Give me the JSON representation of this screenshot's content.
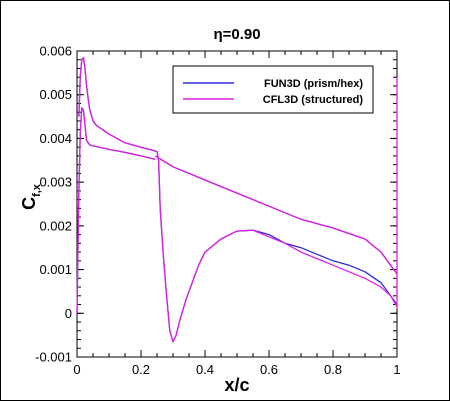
{
  "chart_data": {
    "type": "line",
    "title": "η=0.90",
    "xlabel": "x/c",
    "ylabel_main": "C",
    "ylabel_sub": "f,x",
    "xlim": [
      0,
      1
    ],
    "ylim": [
      -0.001,
      0.006
    ],
    "x_ticks": [
      0,
      0.2,
      0.4,
      0.6,
      0.8,
      1
    ],
    "x_tick_labels": [
      "0",
      "0.2",
      "0.4",
      "0.6",
      "0.8",
      "1"
    ],
    "y_ticks": [
      -0.001,
      0,
      0.001,
      0.002,
      0.003,
      0.004,
      0.005,
      0.006
    ],
    "y_tick_labels": [
      "-0.001",
      "0",
      "0.001",
      "0.002",
      "0.003",
      "0.004",
      "0.005",
      "0.006"
    ],
    "grid": false,
    "legend_position": "top-right",
    "series": [
      {
        "name": "FUN3D (prism/hex)",
        "color": "#2b2bd6",
        "segments": [
          {
            "x": [
              0.0,
              0.005,
              0.01,
              0.015,
              0.02,
              0.025,
              0.03,
              0.04,
              0.05,
              0.07,
              0.1,
              0.15,
              0.2,
              0.245
            ],
            "y": [
              0.0,
              0.0025,
              0.0041,
              0.0047,
              0.00465,
              0.0043,
              0.00395,
              0.00385,
              0.00383,
              0.0038,
              0.00375,
              0.00368,
              0.0036,
              0.00352
            ]
          },
          {
            "x": [
              0.006,
              0.01,
              0.015,
              0.02,
              0.025,
              0.03,
              0.035,
              0.04,
              0.05,
              0.06,
              0.08,
              0.1,
              0.15,
              0.2,
              0.25,
              0.255,
              0.26,
              0.27,
              0.28,
              0.29,
              0.3,
              0.31,
              0.32,
              0.34,
              0.36,
              0.38,
              0.4,
              0.45,
              0.5,
              0.55,
              0.6,
              0.65,
              0.7,
              0.75,
              0.8,
              0.85,
              0.9,
              0.95,
              0.98,
              1.0
            ],
            "y": [
              0.0045,
              0.0054,
              0.0058,
              0.00585,
              0.0056,
              0.0052,
              0.0049,
              0.00465,
              0.0044,
              0.0043,
              0.0042,
              0.0041,
              0.0039,
              0.0038,
              0.0037,
              0.0035,
              0.0024,
              0.0013,
              0.0004,
              -0.0004,
              -0.00065,
              -0.0005,
              -0.0002,
              0.0003,
              0.0007,
              0.0011,
              0.0014,
              0.0017,
              0.00188,
              0.0019,
              0.0018,
              0.0016,
              0.0015,
              0.00135,
              0.0012,
              0.0011,
              0.00095,
              0.0007,
              0.0004,
              0.0002
            ]
          },
          {
            "x": [
              0.245,
              0.3,
              0.4,
              0.5,
              0.6,
              0.7,
              0.8,
              0.9,
              0.95,
              0.99,
              1.0
            ],
            "y": [
              0.0036,
              0.00335,
              0.00305,
              0.00275,
              0.00245,
              0.00215,
              0.00195,
              0.0017,
              0.0014,
              0.001,
              0.0009
            ]
          }
        ]
      },
      {
        "name": "CFL3D (structured)",
        "color": "#e020e0",
        "segments": [
          {
            "x": [
              0.0,
              0.005,
              0.01,
              0.015,
              0.02,
              0.025,
              0.03,
              0.04,
              0.05,
              0.07,
              0.1,
              0.15,
              0.2,
              0.245
            ],
            "y": [
              0.0,
              0.0025,
              0.0041,
              0.0047,
              0.00465,
              0.0043,
              0.00395,
              0.00385,
              0.00383,
              0.0038,
              0.00375,
              0.00368,
              0.0036,
              0.00352
            ]
          },
          {
            "x": [
              0.006,
              0.01,
              0.015,
              0.02,
              0.025,
              0.03,
              0.035,
              0.04,
              0.05,
              0.06,
              0.08,
              0.1,
              0.15,
              0.2,
              0.25,
              0.255,
              0.26,
              0.27,
              0.28,
              0.29,
              0.3,
              0.31,
              0.32,
              0.34,
              0.36,
              0.38,
              0.4,
              0.45,
              0.5,
              0.55,
              0.6,
              0.65,
              0.7,
              0.75,
              0.8,
              0.85,
              0.9,
              0.95,
              0.98,
              1.0
            ],
            "y": [
              0.0045,
              0.0054,
              0.0058,
              0.00585,
              0.0056,
              0.0052,
              0.0049,
              0.00465,
              0.0044,
              0.0043,
              0.0042,
              0.0041,
              0.0039,
              0.0038,
              0.0037,
              0.0035,
              0.0024,
              0.0013,
              0.0004,
              -0.0004,
              -0.00065,
              -0.0005,
              -0.0002,
              0.0003,
              0.0007,
              0.0011,
              0.0014,
              0.0017,
              0.00188,
              0.0019,
              0.00175,
              0.0016,
              0.0014,
              0.00125,
              0.0011,
              0.00095,
              0.0008,
              0.0006,
              0.0004,
              0.00015
            ]
          },
          {
            "x": [
              0.245,
              0.3,
              0.4,
              0.5,
              0.6,
              0.7,
              0.8,
              0.9,
              0.95,
              0.99,
              1.0
            ],
            "y": [
              0.0036,
              0.00335,
              0.00305,
              0.00275,
              0.00245,
              0.00215,
              0.00195,
              0.0017,
              0.0014,
              0.001,
              0.0009
            ]
          },
          {
            "x": [
              1.0,
              1.0
            ],
            "y": [
              0.0001,
              0.0054
            ]
          }
        ]
      }
    ]
  }
}
